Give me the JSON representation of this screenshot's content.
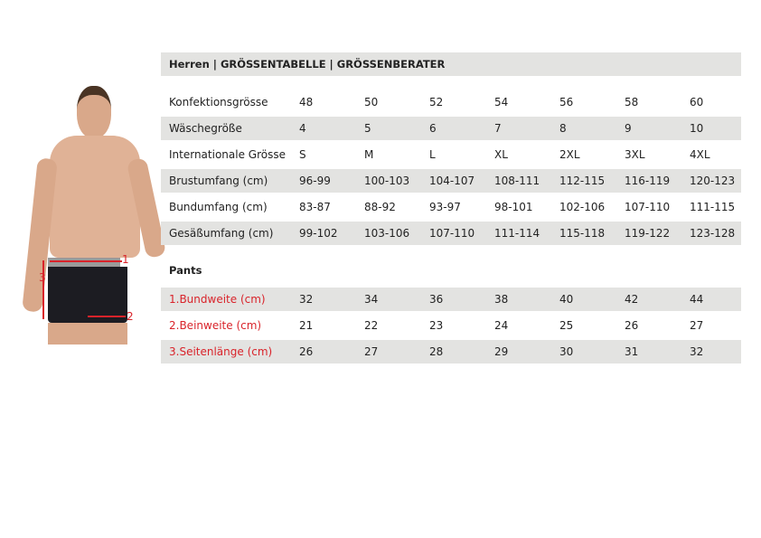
{
  "header": {
    "title": "Herren  |  GRÖSSENTABELLE  |  GRÖSSENBERATER"
  },
  "size_table": {
    "rows": [
      {
        "label": "Konfektionsgrösse",
        "values": [
          "48",
          "50",
          "52",
          "54",
          "56",
          "58",
          "60"
        ]
      },
      {
        "label": "Wäschegröße",
        "values": [
          "4",
          "5",
          "6",
          "7",
          "8",
          "9",
          "10"
        ]
      },
      {
        "label": "Internationale Grösse",
        "values": [
          "S",
          "M",
          "L",
          "XL",
          "2XL",
          "3XL",
          "4XL"
        ]
      },
      {
        "label": "Brustumfang (cm)",
        "values": [
          "96-99",
          "100-103",
          "104-107",
          "108-111",
          "112-115",
          "116-119",
          "120-123"
        ]
      },
      {
        "label": "Bundumfang (cm)",
        "values": [
          "83-87",
          "88-92",
          "93-97",
          "98-101",
          "102-106",
          "107-110",
          "111-115"
        ]
      },
      {
        "label": "Gesäßumfang (cm)",
        "values": [
          "99-102",
          "103-106",
          "107-110",
          "111-114",
          "115-118",
          "119-122",
          "123-128"
        ]
      }
    ]
  },
  "pants": {
    "title": "Pants",
    "rows": [
      {
        "label": "1.Bundweite (cm)",
        "values": [
          "32",
          "34",
          "36",
          "38",
          "40",
          "42",
          "44"
        ]
      },
      {
        "label": "2.Beinweite (cm)",
        "values": [
          "21",
          "22",
          "23",
          "24",
          "25",
          "26",
          "27"
        ]
      },
      {
        "label": "3.Seitenlänge (cm)",
        "values": [
          "26",
          "27",
          "28",
          "29",
          "30",
          "31",
          "32"
        ]
      }
    ]
  },
  "figure": {
    "markers": [
      "1",
      "2",
      "3"
    ],
    "accent": "#d9232a"
  }
}
